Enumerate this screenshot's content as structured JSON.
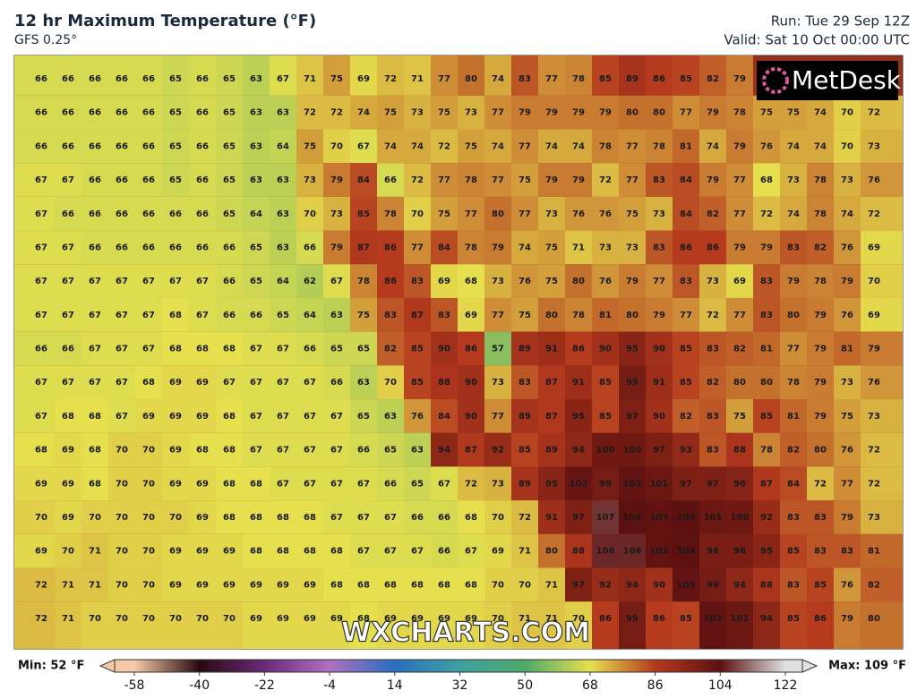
{
  "header": {
    "title": "12 hr Maximum Temperature (°F)",
    "subtitle": "GFS 0.25°",
    "run": "Run: Tue 29 Sep 12Z",
    "valid": "Valid: Sat 10 Oct 00:00 UTC"
  },
  "logo": "MetDesk",
  "watermark": "WXCHARTS.COM",
  "grid": {
    "rows": [
      [
        66,
        66,
        66,
        66,
        66,
        65,
        66,
        65,
        63,
        67,
        71,
        75,
        69,
        72,
        71,
        77,
        80,
        74,
        83,
        77,
        78,
        85,
        89,
        86,
        85,
        82,
        79,
        null,
        null,
        null,
        null,
        null
      ],
      [
        66,
        66,
        66,
        66,
        66,
        65,
        66,
        65,
        63,
        63,
        72,
        72,
        74,
        75,
        73,
        75,
        73,
        77,
        79,
        79,
        79,
        79,
        80,
        80,
        77,
        79,
        78,
        75,
        75,
        74,
        70,
        72
      ],
      [
        66,
        66,
        66,
        66,
        66,
        65,
        66,
        65,
        63,
        64,
        75,
        70,
        67,
        74,
        74,
        72,
        75,
        74,
        77,
        74,
        74,
        78,
        77,
        78,
        81,
        74,
        79,
        76,
        74,
        74,
        70,
        73
      ],
      [
        67,
        67,
        66,
        66,
        66,
        65,
        66,
        65,
        63,
        63,
        73,
        79,
        84,
        66,
        72,
        77,
        78,
        77,
        75,
        79,
        79,
        72,
        77,
        83,
        84,
        79,
        77,
        68,
        73,
        78,
        73,
        76
      ],
      [
        67,
        66,
        66,
        66,
        66,
        66,
        66,
        65,
        64,
        63,
        70,
        73,
        85,
        78,
        70,
        75,
        77,
        80,
        77,
        73,
        76,
        76,
        75,
        73,
        84,
        82,
        77,
        72,
        74,
        78,
        74,
        72
      ],
      [
        67,
        67,
        66,
        66,
        66,
        66,
        66,
        66,
        65,
        63,
        66,
        79,
        87,
        86,
        77,
        84,
        78,
        79,
        74,
        75,
        71,
        73,
        73,
        83,
        86,
        86,
        79,
        79,
        83,
        82,
        76,
        69
      ],
      [
        67,
        67,
        67,
        67,
        67,
        67,
        67,
        66,
        65,
        64,
        62,
        67,
        78,
        86,
        83,
        69,
        68,
        73,
        76,
        75,
        80,
        76,
        79,
        77,
        83,
        73,
        69,
        83,
        79,
        78,
        79,
        70
      ],
      [
        67,
        67,
        67,
        67,
        67,
        68,
        67,
        66,
        66,
        65,
        64,
        63,
        75,
        83,
        87,
        83,
        69,
        77,
        75,
        80,
        78,
        81,
        80,
        79,
        77,
        72,
        77,
        83,
        80,
        79,
        76,
        69
      ],
      [
        66,
        66,
        67,
        67,
        67,
        68,
        68,
        68,
        67,
        67,
        66,
        65,
        65,
        82,
        85,
        90,
        86,
        57,
        89,
        91,
        86,
        90,
        95,
        90,
        85,
        83,
        82,
        81,
        77,
        79,
        81,
        79
      ],
      [
        67,
        67,
        67,
        67,
        68,
        69,
        69,
        67,
        67,
        67,
        67,
        66,
        63,
        70,
        85,
        88,
        90,
        73,
        83,
        87,
        91,
        85,
        99,
        91,
        85,
        82,
        80,
        80,
        78,
        79,
        73,
        76
      ],
      [
        67,
        68,
        68,
        67,
        69,
        69,
        69,
        68,
        67,
        67,
        67,
        67,
        65,
        63,
        76,
        84,
        90,
        77,
        89,
        87,
        95,
        85,
        97,
        90,
        82,
        83,
        75,
        85,
        81,
        79,
        75,
        73
      ],
      [
        68,
        69,
        68,
        70,
        70,
        69,
        68,
        68,
        67,
        67,
        67,
        67,
        66,
        65,
        63,
        94,
        87,
        92,
        85,
        89,
        94,
        100,
        100,
        97,
        93,
        83,
        88,
        78,
        82,
        80,
        76,
        72
      ],
      [
        69,
        69,
        68,
        70,
        70,
        69,
        69,
        68,
        68,
        67,
        67,
        67,
        67,
        66,
        65,
        67,
        72,
        73,
        89,
        95,
        102,
        99,
        103,
        101,
        97,
        97,
        96,
        87,
        84,
        72,
        77,
        72
      ],
      [
        70,
        69,
        70,
        70,
        70,
        70,
        69,
        68,
        68,
        68,
        68,
        67,
        67,
        67,
        66,
        66,
        68,
        70,
        72,
        91,
        97,
        107,
        104,
        103,
        104,
        101,
        100,
        92,
        83,
        83,
        79,
        73
      ],
      [
        69,
        70,
        71,
        70,
        70,
        69,
        69,
        69,
        68,
        68,
        68,
        68,
        67,
        67,
        67,
        66,
        67,
        69,
        71,
        80,
        88,
        106,
        106,
        103,
        104,
        98,
        98,
        95,
        85,
        83,
        83,
        81
      ],
      [
        72,
        71,
        71,
        70,
        70,
        69,
        69,
        69,
        69,
        69,
        69,
        68,
        68,
        68,
        68,
        68,
        68,
        70,
        70,
        71,
        97,
        92,
        94,
        90,
        103,
        99,
        94,
        88,
        83,
        85,
        76,
        82
      ],
      [
        72,
        71,
        70,
        70,
        70,
        70,
        70,
        70,
        69,
        69,
        69,
        69,
        68,
        69,
        69,
        69,
        69,
        70,
        71,
        71,
        70,
        86,
        99,
        86,
        85,
        103,
        101,
        94,
        85,
        86,
        79,
        80
      ]
    ]
  },
  "colorbar": {
    "ticks": [
      -58,
      -40,
      -22,
      -4,
      14,
      32,
      50,
      68,
      86,
      104,
      122
    ],
    "colors": [
      "#f5c8a8",
      "#2a0a10",
      "#6a2a7a",
      "#b070c0",
      "#2a6fc0",
      "#3fa0a0",
      "#4fa86a",
      "#e6e04e",
      "#b53a1e",
      "#5c1010",
      "#e0e0e0"
    ],
    "min_label": "Min: 52 °F",
    "max_label": "Max: 109 °F"
  }
}
